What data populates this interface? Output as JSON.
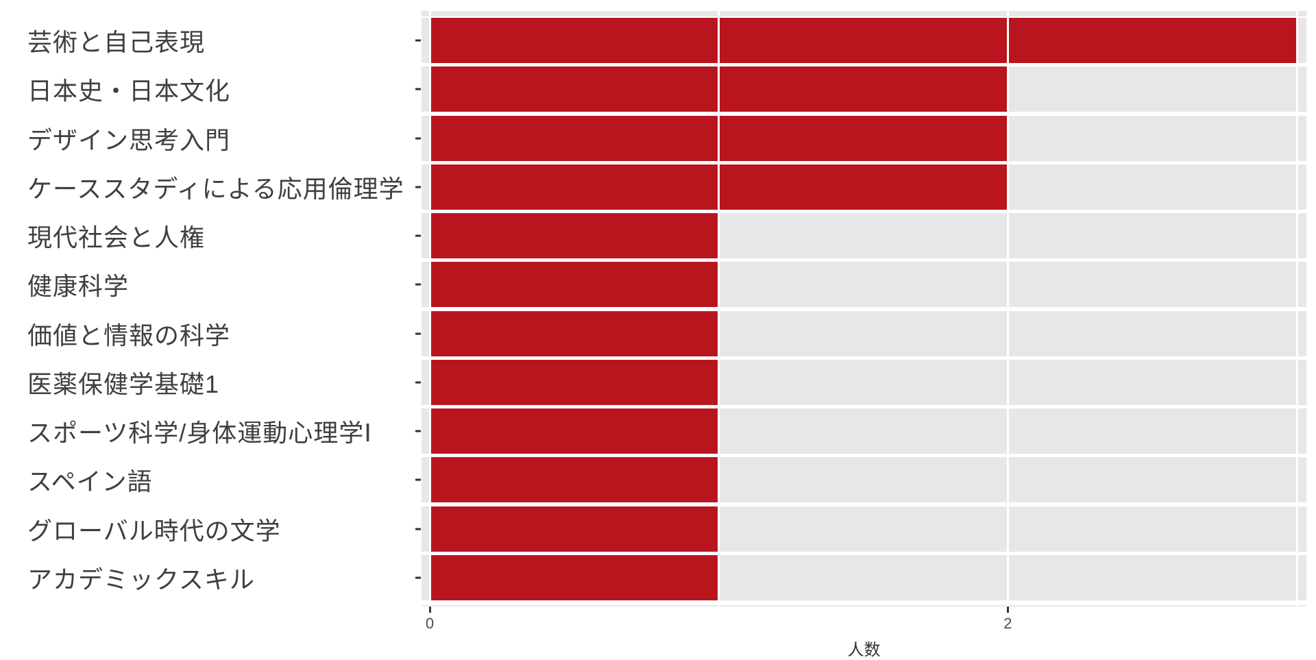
{
  "chart_data": {
    "type": "bar",
    "orientation": "horizontal",
    "title": "",
    "xlabel": "人数",
    "ylabel": "",
    "categories": [
      "芸術と自己表現",
      "日本史・日本文化",
      "デザイン思考入門",
      "ケーススタディによる応用倫理学",
      "現代社会と人権",
      "健康科学",
      "価値と情報の科学",
      "医薬保健学基礎1",
      "スポーツ科学/身体運動心理学Ⅰ",
      "スペイン語",
      "グローバル時代の文学",
      "アカデミックスキル"
    ],
    "values": [
      3,
      2,
      2,
      2,
      1,
      1,
      1,
      1,
      1,
      1,
      1,
      1
    ],
    "xlim": [
      0,
      3
    ],
    "xticks": [
      {
        "value": 0,
        "label": "0"
      },
      {
        "value": 2,
        "label": "2"
      }
    ],
    "gridline_values": [
      0,
      1,
      2,
      3
    ],
    "grid_style": "white vertical gridlines drawn over bars",
    "legend": "none",
    "colors": {
      "bar": "#B8151F",
      "track": "#E7E7E7",
      "background": "#FFFFFF",
      "axis_tick": "#333333",
      "category_label": "#3F3F3F",
      "tick_label": "#4D4D4D",
      "axis_title": "#333333"
    }
  }
}
